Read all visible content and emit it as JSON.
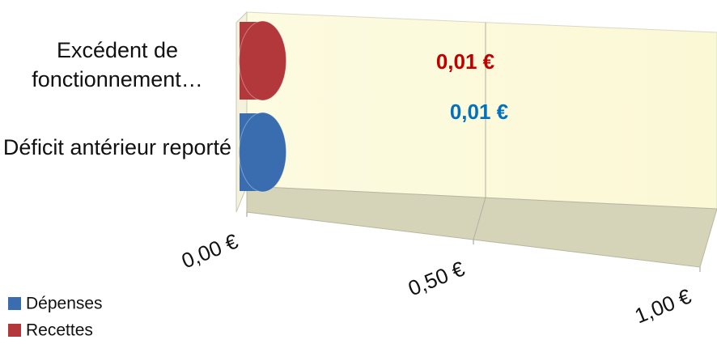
{
  "chart_data": {
    "type": "bar3d",
    "categories": [
      "Excédent de fonctionnement…",
      "Déficit antérieur reporté"
    ],
    "series": [
      {
        "name": "Dépenses",
        "color": "#3a6db0",
        "label_color": "#0070c0",
        "values": [
          null,
          0.01
        ],
        "value_labels": [
          null,
          "0,01 €"
        ]
      },
      {
        "name": "Recettes",
        "color": "#b3383c",
        "label_color": "#c00000",
        "values": [
          0.01,
          null
        ],
        "value_labels": [
          "0,01 €",
          null
        ]
      }
    ],
    "xlim": [
      0,
      1
    ],
    "xticks": [
      {
        "value": 0,
        "label": "0,00 €"
      },
      {
        "value": 0.5,
        "label": "0,50 €"
      },
      {
        "value": 1,
        "label": "1,00 €"
      }
    ],
    "grid": true,
    "legend": "bottom-left"
  }
}
